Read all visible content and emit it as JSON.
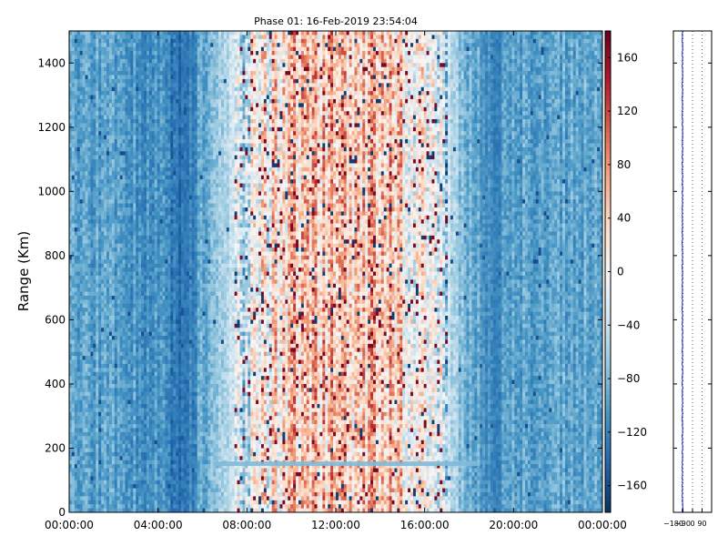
{
  "chart_data": [
    {
      "type": "heatmap",
      "title": "Phase 01: 16-Feb-2019 23:54:04",
      "xlabel": "",
      "ylabel": "Range (Km)",
      "x_ticks": [
        "00:00:00",
        "04:00:00",
        "08:00:00",
        "12:00:00",
        "16:00:00",
        "20:00:00",
        "00:00:00"
      ],
      "x_range_hours": [
        0,
        24
      ],
      "ylim": [
        0,
        1500
      ],
      "y_ticks": [
        0,
        200,
        400,
        600,
        800,
        1000,
        1200,
        1400
      ],
      "colorbar": {
        "range": [
          -180,
          180
        ],
        "ticks": [
          -160,
          -120,
          -80,
          -40,
          0,
          40,
          80,
          120,
          160
        ],
        "tick_labels": [
          "−160",
          "−120",
          "−80",
          "−40",
          "0",
          "40",
          "80",
          "120",
          "160"
        ],
        "colormap": "RdBu_r"
      },
      "mean_phase_profile_hours": [
        0,
        2,
        4,
        5,
        6,
        7,
        8,
        9,
        10,
        11,
        12,
        13,
        14,
        15,
        16,
        17,
        18,
        19,
        20,
        22,
        24
      ],
      "mean_phase_profile_values": [
        -95,
        -98,
        -110,
        -130,
        -95,
        -50,
        -25,
        10,
        40,
        55,
        50,
        55,
        45,
        25,
        -10,
        -40,
        -90,
        -105,
        -100,
        -95,
        -92
      ],
      "features": [
        {
          "type": "horizontal_band",
          "hours": [
            6.5,
            18.5
          ],
          "range_km": 150,
          "value": -80
        },
        {
          "type": "dark_band",
          "hours": [
            4.8,
            5.6
          ],
          "value": -140
        },
        {
          "type": "dark_band",
          "hours": [
            18.5,
            19.5
          ],
          "value": -130
        }
      ]
    },
    {
      "type": "line",
      "ylim": [
        0,
        1500
      ],
      "xlim": [
        -180,
        180
      ],
      "x_ticks": [
        -180,
        -90,
        0,
        90
      ],
      "x_tick_labels": [
        "−180",
        "−90",
        "0",
        "90"
      ],
      "grid": "vertical-dotted",
      "series_color": "#0000cc",
      "mean_value": -95
    }
  ]
}
